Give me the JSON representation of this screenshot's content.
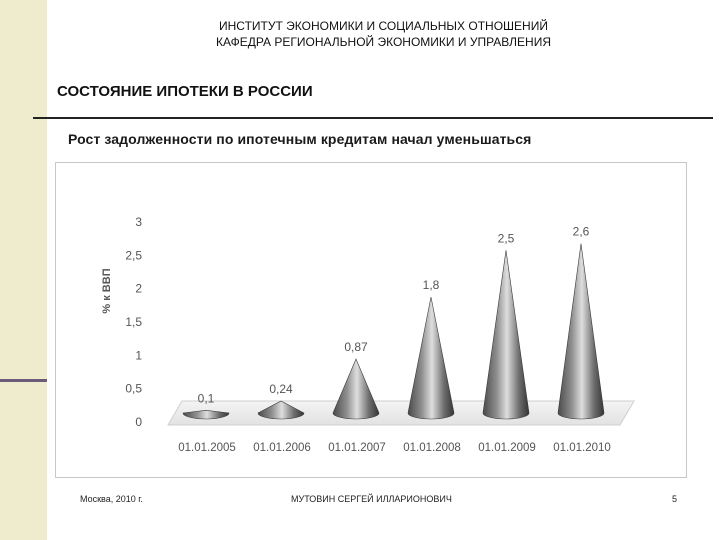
{
  "header": {
    "line1": "ИНСТИТУТ ЭКОНОМИКИ И СОЦИАЛЬНЫХ ОТНОШЕНИЙ",
    "line2": "КАФЕДРА РЕГИОНАЛЬНОЙ ЭКОНОМИКИ И УПРАВЛЕНИЯ"
  },
  "section_title": "СОСТОЯНИЕ ИПОТЕКИ В РОССИИ",
  "subtitle": "Рост задолженности по ипотечным кредитам начал уменьшаться",
  "footer": {
    "left": "Москва, 2010 г.",
    "center": "МУТОВИН СЕРГЕЙ ИЛЛАРИОНОВИЧ",
    "page": "5"
  },
  "colors": {
    "band": "#eeeccc",
    "band_accent": "#6b5a78",
    "cone_dark": "#3f3f3f",
    "cone_light": "#d9d9d9"
  },
  "chart_data": {
    "type": "bar",
    "style": "3d-cone",
    "categories": [
      "01.01.2005",
      "01.01.2006",
      "01.01.2007",
      "01.01.2008",
      "01.01.2009",
      "01.01.2010"
    ],
    "values": [
      0.1,
      0.24,
      0.87,
      1.8,
      2.5,
      2.6
    ],
    "value_labels": [
      "0,1",
      "0,24",
      "0,87",
      "1,8",
      "2,5",
      "2,6"
    ],
    "ylabel": "% к ВВП",
    "ylim": [
      0,
      3
    ],
    "yticks": [
      0,
      0.5,
      1,
      1.5,
      2,
      2.5,
      3
    ],
    "ytick_labels": [
      "0",
      "0,5",
      "1",
      "1,5",
      "2",
      "2,5",
      "3"
    ],
    "grid": false,
    "legend": "none"
  }
}
